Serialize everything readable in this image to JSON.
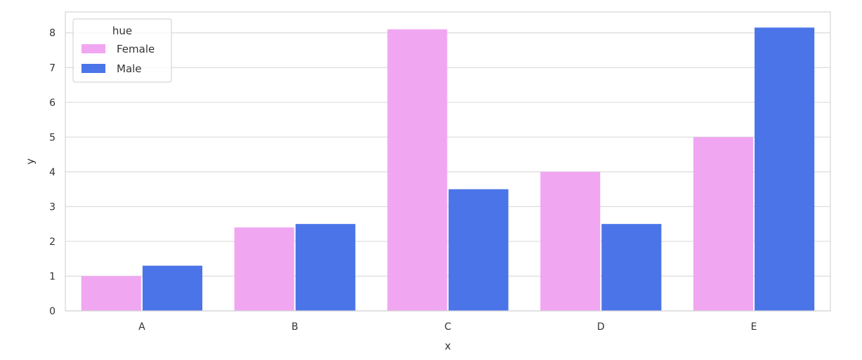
{
  "chart_data": {
    "type": "bar",
    "categories": [
      "A",
      "B",
      "C",
      "D",
      "E"
    ],
    "series": [
      {
        "name": "Female",
        "color": "#f0a6f1",
        "values": [
          1.0,
          2.4,
          8.1,
          4.0,
          5.0
        ]
      },
      {
        "name": "Male",
        "color": "#4a74e8",
        "values": [
          1.3,
          2.5,
          3.5,
          2.5,
          8.15
        ]
      }
    ],
    "xlabel": "x",
    "ylabel": "y",
    "ylim": [
      0,
      8.6
    ],
    "yticks": [
      "0",
      "1",
      "2",
      "3",
      "4",
      "5",
      "6",
      "7",
      "8"
    ],
    "grid": true,
    "legend": {
      "title": "hue",
      "placement": "top-left"
    }
  }
}
